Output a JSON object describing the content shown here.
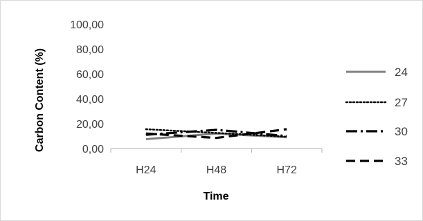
{
  "chart_data": {
    "type": "line",
    "categories": [
      "H24",
      "H48",
      "H72"
    ],
    "xlabel": "Time",
    "ylabel": "Carbon Content (%)",
    "ylim": [
      0,
      100
    ],
    "y_ticks": [
      "0,00",
      "20,00",
      "40,00",
      "60,00",
      "80,00",
      "100,00"
    ],
    "y_tick_values": [
      0,
      20,
      40,
      60,
      80,
      100
    ],
    "grid": false,
    "legend_position": "right",
    "series": [
      {
        "name": "24",
        "values": [
          7.5,
          12.0,
          9.0
        ],
        "style": "solid",
        "color": "#808080"
      },
      {
        "name": "27",
        "values": [
          15.5,
          12.5,
          9.5
        ],
        "style": "dotted",
        "color": "#000000"
      },
      {
        "name": "30",
        "values": [
          11.0,
          15.0,
          10.0
        ],
        "style": "dash-dot",
        "color": "#000000"
      },
      {
        "name": "33",
        "values": [
          12.0,
          8.5,
          15.5
        ],
        "style": "dashed",
        "color": "#000000"
      }
    ]
  },
  "colors": {
    "axis": "#bfbfbf",
    "frame": "#d9d9d9"
  }
}
